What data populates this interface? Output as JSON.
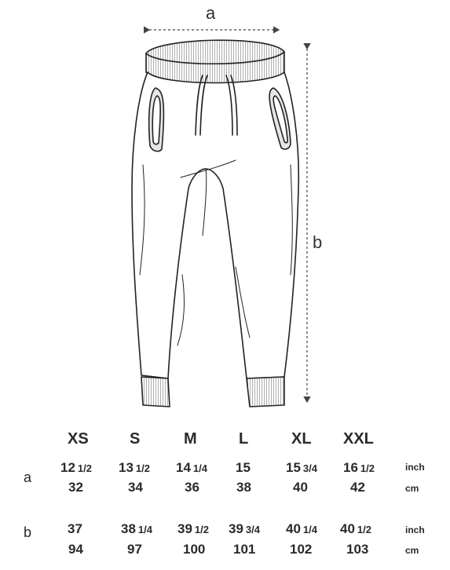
{
  "diagram": {
    "label_a": "a",
    "label_b": "b"
  },
  "table": {
    "sizes": [
      "XS",
      "S",
      "M",
      "L",
      "XL",
      "XXL"
    ],
    "rows": [
      {
        "label": "a",
        "inch": [
          {
            "whole": "12",
            "frac": "1/2"
          },
          {
            "whole": "13",
            "frac": "1/2"
          },
          {
            "whole": "14",
            "frac": "1/4"
          },
          {
            "whole": "15",
            "frac": ""
          },
          {
            "whole": "15",
            "frac": "3/4"
          },
          {
            "whole": "16",
            "frac": "1/2"
          }
        ],
        "cm": [
          "32",
          "34",
          "36",
          "38",
          "40",
          "42"
        ],
        "unit_inch": "inch",
        "unit_cm": "cm"
      },
      {
        "label": "b",
        "inch": [
          {
            "whole": "37",
            "frac": ""
          },
          {
            "whole": "38",
            "frac": "1/4"
          },
          {
            "whole": "39",
            "frac": "1/2"
          },
          {
            "whole": "39",
            "frac": "3/4"
          },
          {
            "whole": "40",
            "frac": "1/4"
          },
          {
            "whole": "40",
            "frac": "1/2"
          }
        ],
        "cm": [
          "94",
          "97",
          "100",
          "101",
          "102",
          "103"
        ],
        "unit_inch": "inch",
        "unit_cm": "cm"
      }
    ]
  }
}
